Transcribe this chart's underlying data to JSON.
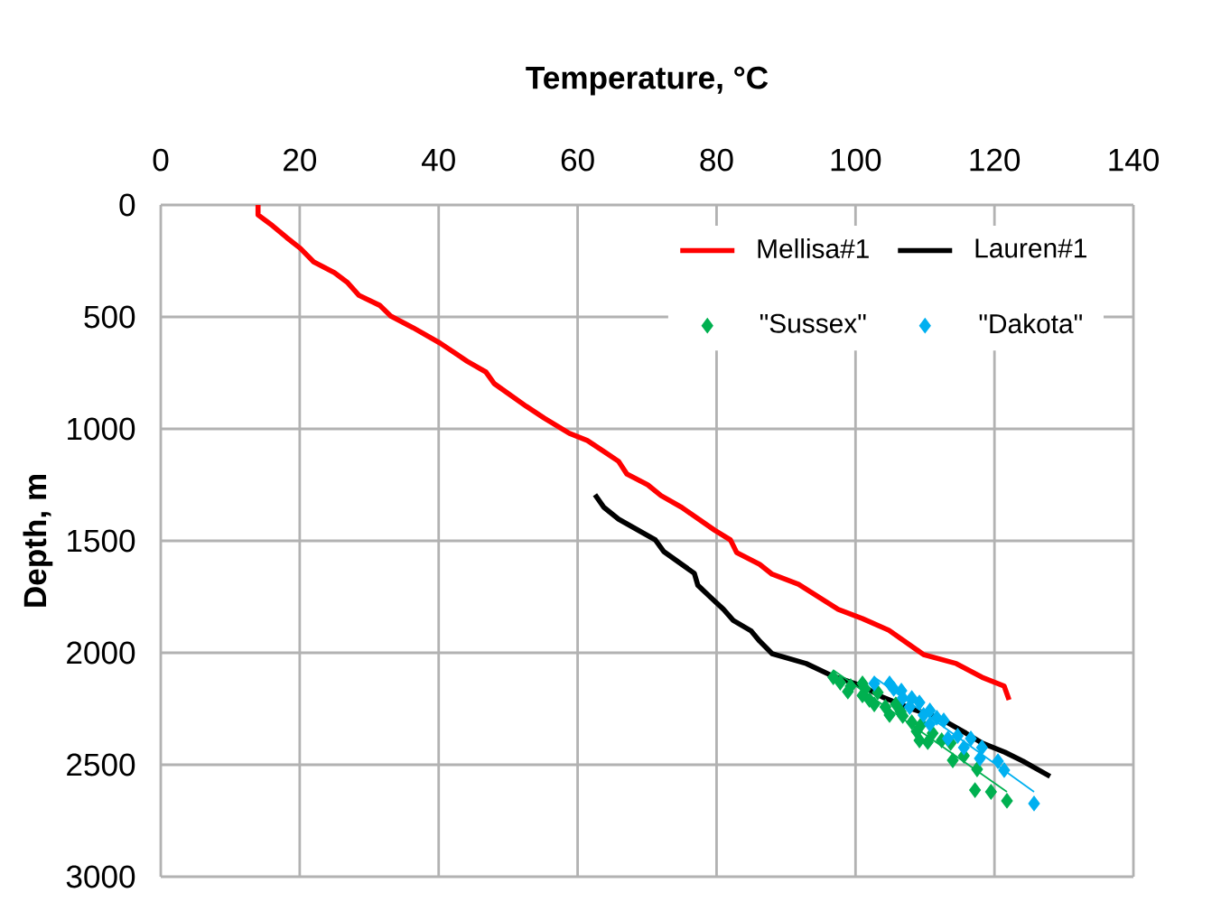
{
  "chart_data": {
    "type": "line",
    "xlabel": "Temperature, °C",
    "ylabel": "Depth, m",
    "xlim": [
      0,
      140
    ],
    "xticks": [
      0,
      20,
      40,
      60,
      80,
      100,
      120,
      140
    ],
    "ylim": [
      3000,
      0
    ],
    "yticks": [
      0,
      500,
      1000,
      1500,
      2000,
      2500,
      3000
    ],
    "grid": true,
    "legend": "top right",
    "series": [
      {
        "name": "Mellisa#1",
        "color": "#ff0000",
        "x": [
          14.0,
          14.0,
          16.1,
          18.1,
          20.1,
          22.0,
          25.0,
          26.9,
          28.5,
          31.5,
          33.1,
          36.3,
          40.2,
          44.1,
          46.8,
          48.0,
          52.6,
          55.2,
          58.8,
          61.4,
          63.8,
          65.9,
          67.1,
          70.1,
          72.0,
          75.0,
          79.7,
          82.0,
          82.9,
          86.2,
          88.0,
          91.8,
          97.5,
          101.0,
          104.8,
          109.8,
          114.5,
          118.2,
          121.4,
          122.1
        ],
        "values": [
          0,
          44,
          93,
          145,
          194,
          254,
          302,
          347,
          403,
          448,
          496,
          548,
          617,
          698,
          746,
          798,
          899,
          952,
          1020,
          1052,
          1101,
          1145,
          1202,
          1250,
          1298,
          1351,
          1452,
          1496,
          1552,
          1605,
          1649,
          1694,
          1806,
          1847,
          1899,
          2008,
          2048,
          2109,
          2149,
          2210
        ]
      },
      {
        "name": "Lauren#1",
        "color": "#000000",
        "x": [
          62.5,
          63.8,
          65.9,
          71.2,
          72.4,
          76.8,
          77.3,
          79.2,
          81.0,
          82.4,
          85.0,
          86.2,
          88.0,
          92.9,
          96.5,
          101.0,
          103.9,
          108.1,
          112.0,
          115.9,
          118.2,
          121.5,
          124.1,
          128.0
        ],
        "values": [
          1294,
          1351,
          1403,
          1496,
          1548,
          1645,
          1698,
          1754,
          1806,
          1855,
          1903,
          1948,
          2004,
          2048,
          2101,
          2149,
          2198,
          2250,
          2290,
          2359,
          2403,
          2444,
          2484,
          2552
        ]
      },
      {
        "name": "\"Sussex\"",
        "type": "scatter",
        "marker": "diamond",
        "color": "#00b050",
        "x": [
          96.8,
          97.8,
          99.3,
          98.9,
          101.0,
          101.4,
          101.0,
          102.0,
          102.7,
          103.2,
          104.3,
          104.9,
          105.8,
          106.5,
          106.8,
          108.1,
          108.8,
          109.5,
          109.2,
          110.4,
          111.1,
          112.4,
          113.7,
          114.0,
          115.6,
          117.5,
          117.2,
          119.5,
          121.8
        ],
        "values": [
          2109,
          2133,
          2149,
          2173,
          2137,
          2161,
          2190,
          2210,
          2230,
          2177,
          2242,
          2278,
          2230,
          2262,
          2282,
          2310,
          2351,
          2319,
          2391,
          2399,
          2359,
          2391,
          2403,
          2480,
          2460,
          2520,
          2613,
          2621,
          2661
        ]
      },
      {
        "name": "\"Dakota\"",
        "type": "scatter",
        "marker": "diamond",
        "color": "#00b0f0",
        "x": [
          102.7,
          104.9,
          105.5,
          106.6,
          106.8,
          108.1,
          109.2,
          107.8,
          110.7,
          109.8,
          111.7,
          112.7,
          110.7,
          113.3,
          114.7,
          116.6,
          115.6,
          118.2,
          117.9,
          120.5,
          121.4,
          125.7
        ],
        "values": [
          2137,
          2137,
          2161,
          2169,
          2202,
          2202,
          2222,
          2242,
          2258,
          2278,
          2290,
          2302,
          2319,
          2383,
          2371,
          2383,
          2423,
          2423,
          2472,
          2484,
          2524,
          2673
        ]
      },
      {
        "color": "#00b050",
        "x": [
          96.8,
          121.8
        ],
        "values": [
          2077,
          2621
        ]
      },
      {
        "color": "#00b0f0",
        "x": [
          102.7,
          125.7
        ],
        "values": [
          2109,
          2621
        ]
      }
    ]
  }
}
